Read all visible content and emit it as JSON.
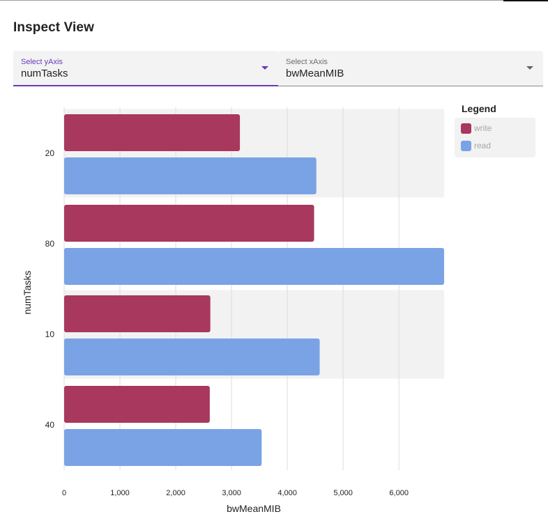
{
  "page": {
    "title": "Inspect View"
  },
  "selects": {
    "y": {
      "label": "Select yAxis",
      "value": "numTasks"
    },
    "x": {
      "label": "Select xAxis",
      "value": "bwMeanMIB"
    }
  },
  "legend": {
    "title": "Legend",
    "items": [
      {
        "label": "write",
        "color": "#a8385d"
      },
      {
        "label": "read",
        "color": "#7aa3e5"
      }
    ]
  },
  "chart_data": {
    "type": "bar",
    "orientation": "horizontal",
    "categories": [
      "20",
      "80",
      "10",
      "40"
    ],
    "series": [
      {
        "name": "write",
        "color": "#a8385d",
        "values": [
          3150,
          4480,
          2620,
          2610
        ]
      },
      {
        "name": "read",
        "color": "#7aa3e5",
        "values": [
          4520,
          6810,
          4580,
          3540
        ]
      }
    ],
    "xlabel": "bwMeanMIB",
    "ylabel": "numTasks",
    "xlim": [
      0,
      6810
    ],
    "xticks": [
      0,
      1000,
      2000,
      3000,
      4000,
      5000,
      6000
    ],
    "xtick_labels": [
      "0",
      "1,000",
      "2,000",
      "3,000",
      "4,000",
      "5,000",
      "6,000"
    ],
    "grid": true,
    "legend_position": "top-right"
  }
}
